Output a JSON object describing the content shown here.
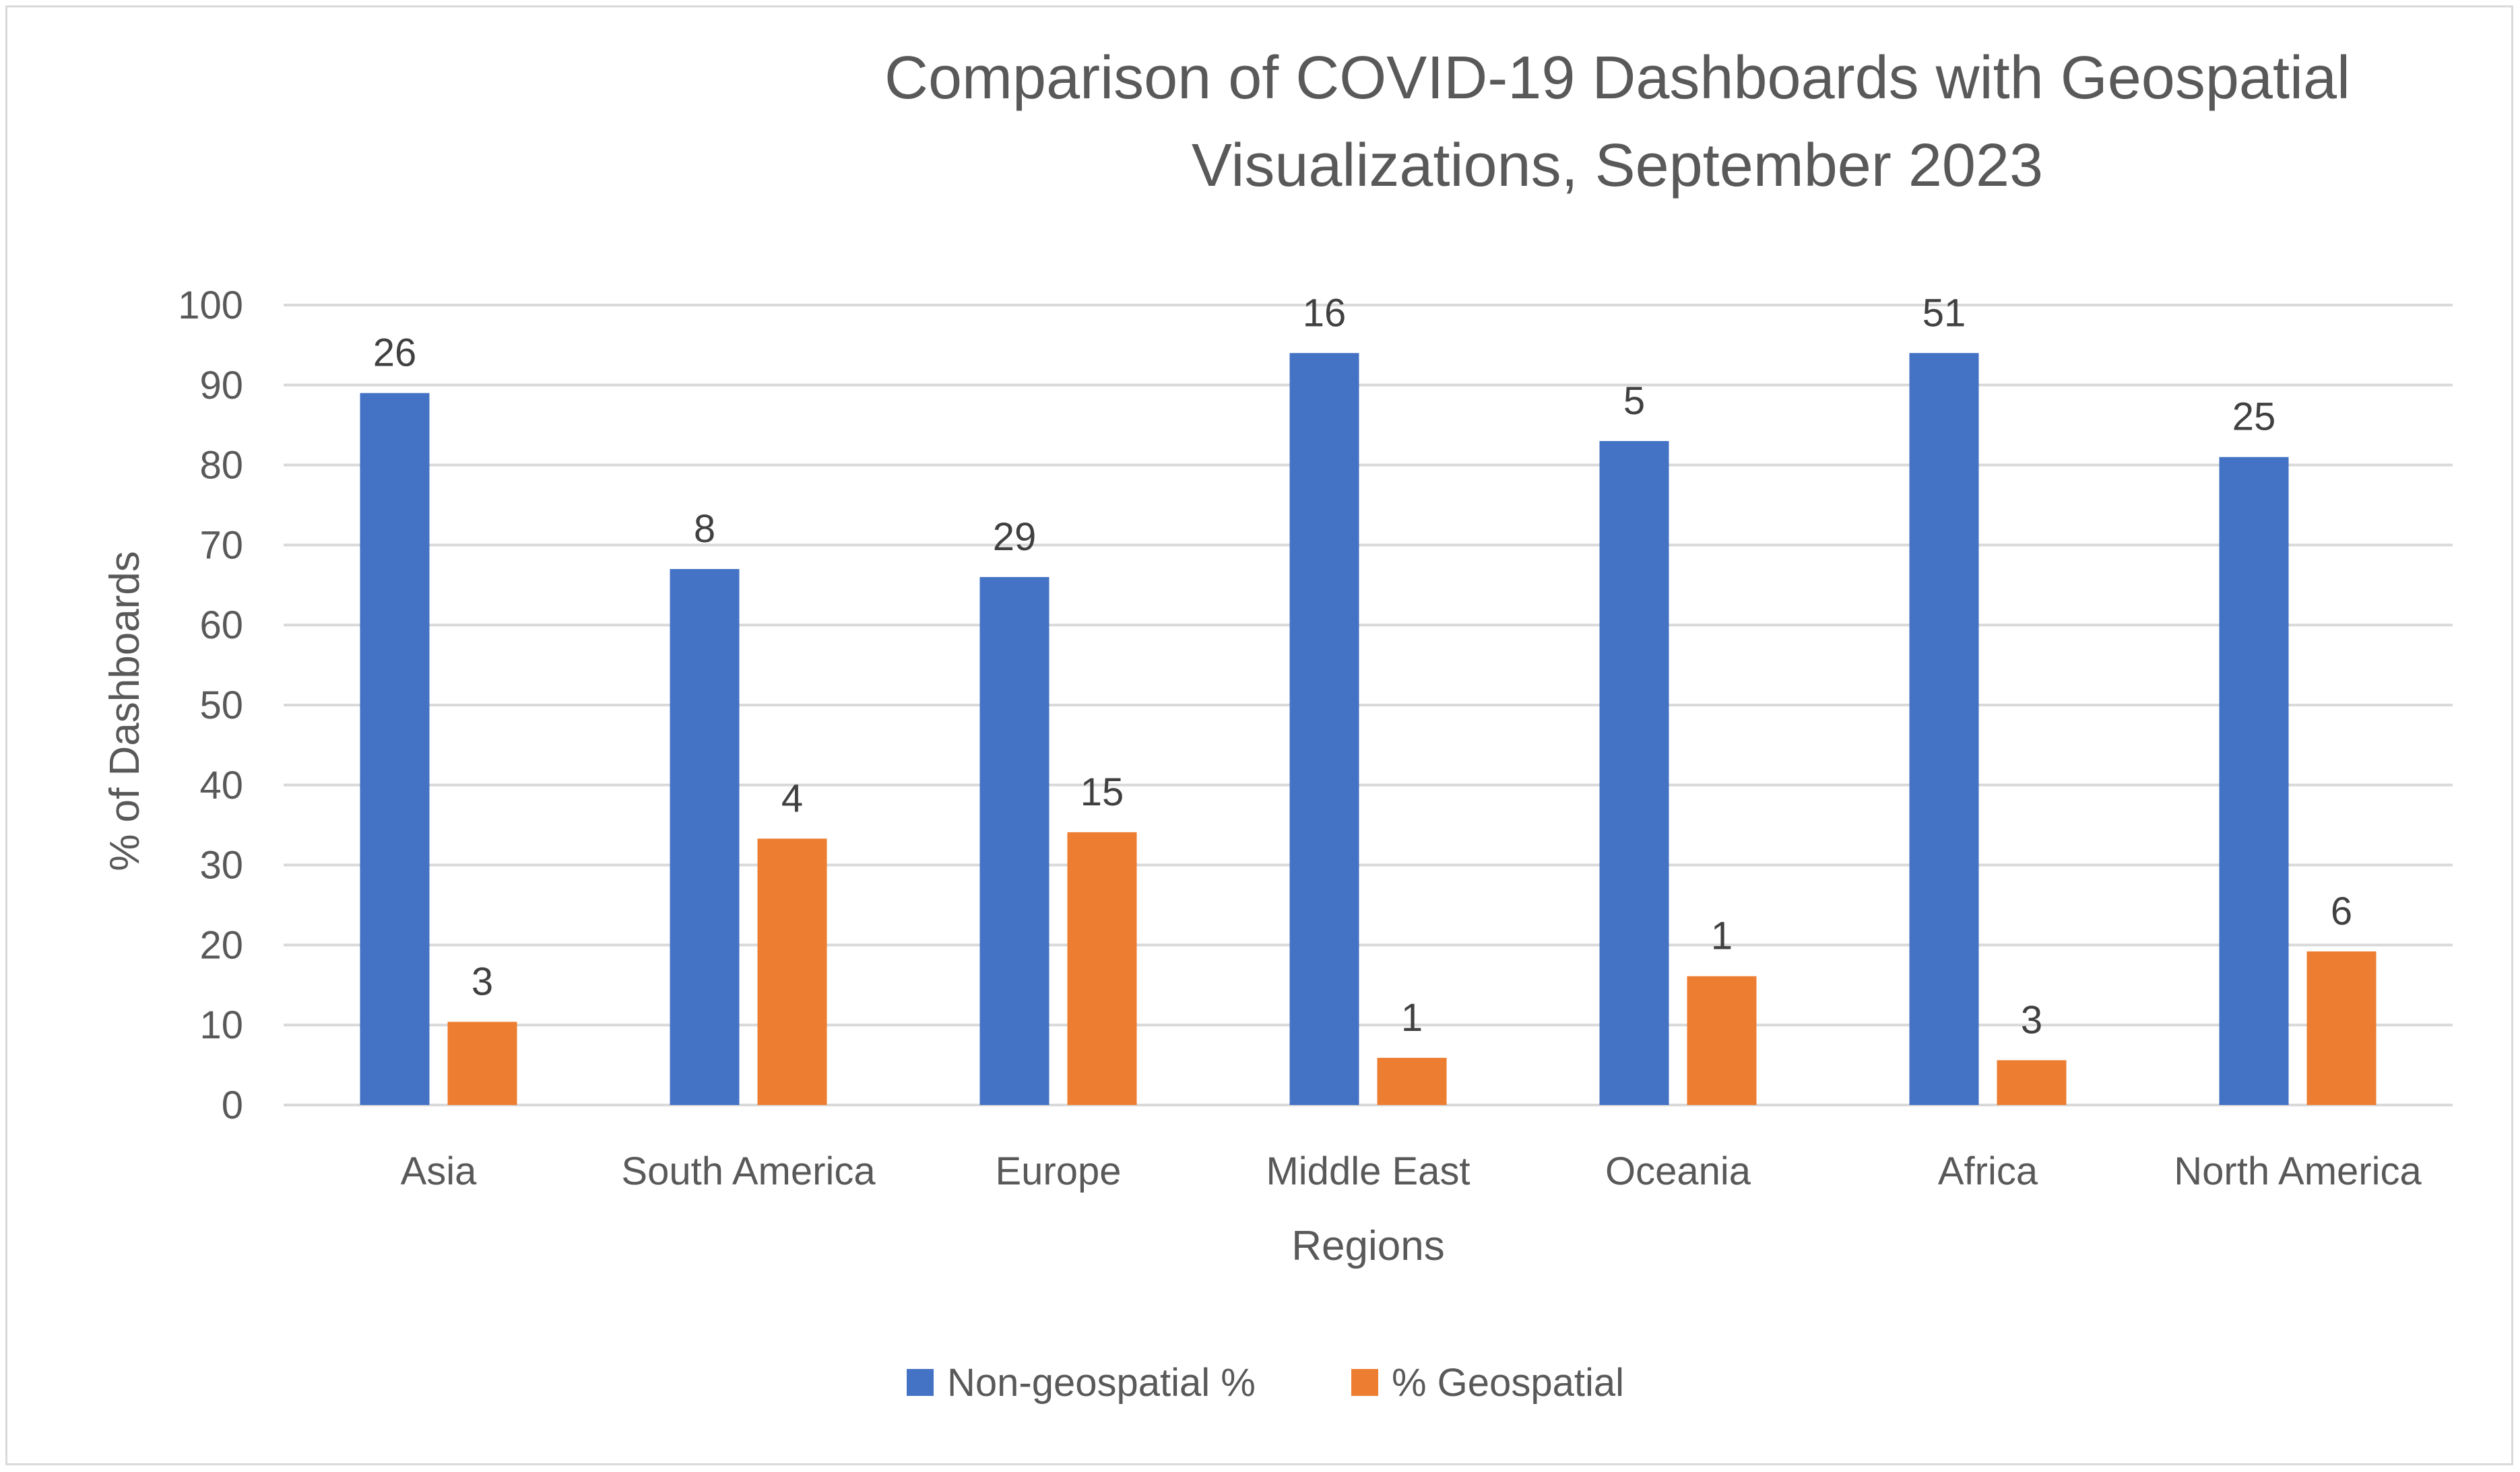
{
  "chart_data": {
    "type": "bar",
    "title": "Comparison of COVID-19 Dashboards with Geospatial Visualizations, September 2023",
    "title_lines": [
      "Comparison of COVID-19 Dashboards with Geospatial",
      "Visualizations, September 2023"
    ],
    "xlabel": "Regions",
    "ylabel": "% of Dashboards",
    "ylim": [
      0,
      100
    ],
    "yticks": [
      0,
      10,
      20,
      30,
      40,
      50,
      60,
      70,
      80,
      90,
      100
    ],
    "grid": true,
    "legend_position": "bottom",
    "categories": [
      "Asia",
      "South America",
      "Europe",
      "Middle East",
      "Oceania",
      "Africa",
      "North America"
    ],
    "series": [
      {
        "name": "Non-geospatial %",
        "color": "#4472c4",
        "values": [
          89,
          67,
          66,
          94,
          83,
          94,
          81
        ],
        "labels": [
          "26",
          "8",
          "29",
          "16",
          "5",
          "51",
          "25"
        ]
      },
      {
        "name": "% Geospatial",
        "color": "#ed7d31",
        "values": [
          10.4,
          33.3,
          34.1,
          5.9,
          16.1,
          5.6,
          19.2
        ],
        "labels": [
          "3",
          "4",
          "15",
          "1",
          "1",
          "3",
          "6"
        ]
      }
    ]
  }
}
